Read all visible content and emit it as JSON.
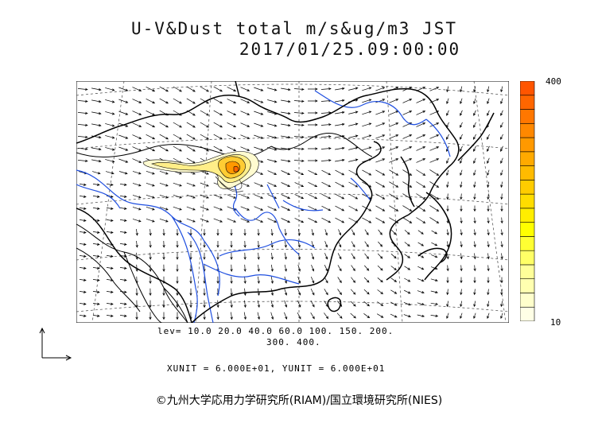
{
  "title": {
    "line1": "U-V&Dust total m/s&ug/m3 JST",
    "line2": "2017/01/25.09:00:00"
  },
  "colorbar": {
    "max_label": "400",
    "min_label": "10",
    "colors": [
      "#ffffe6",
      "#ffffcc",
      "#ffffb0",
      "#ffff99",
      "#ffff66",
      "#ffff33",
      "#ffff00",
      "#ffee00",
      "#ffdd00",
      "#ffcc00",
      "#ffbb00",
      "#ffaa00",
      "#ff9900",
      "#ff8800",
      "#ff7700",
      "#ff6600",
      "#ff5500"
    ]
  },
  "levels": {
    "line1": "lev= 10.0 20.0 40.0 60.0 100. 150. 200.",
    "line2": "300. 400."
  },
  "units_note": "XUNIT = 6.000E+01, YUNIT = 6.000E+01",
  "copyright": "©九州大学応用力学研究所(RIAM)/国立環境研究所(NIES)",
  "map": {
    "land_outline_color": "#000000",
    "river_color": "#1f4fe0",
    "dust_plume": {
      "peak_color": "#ff6600",
      "mid_color": "#ffcc33",
      "low_color": "#ffff99",
      "edge_color": "#ffffcc"
    }
  }
}
